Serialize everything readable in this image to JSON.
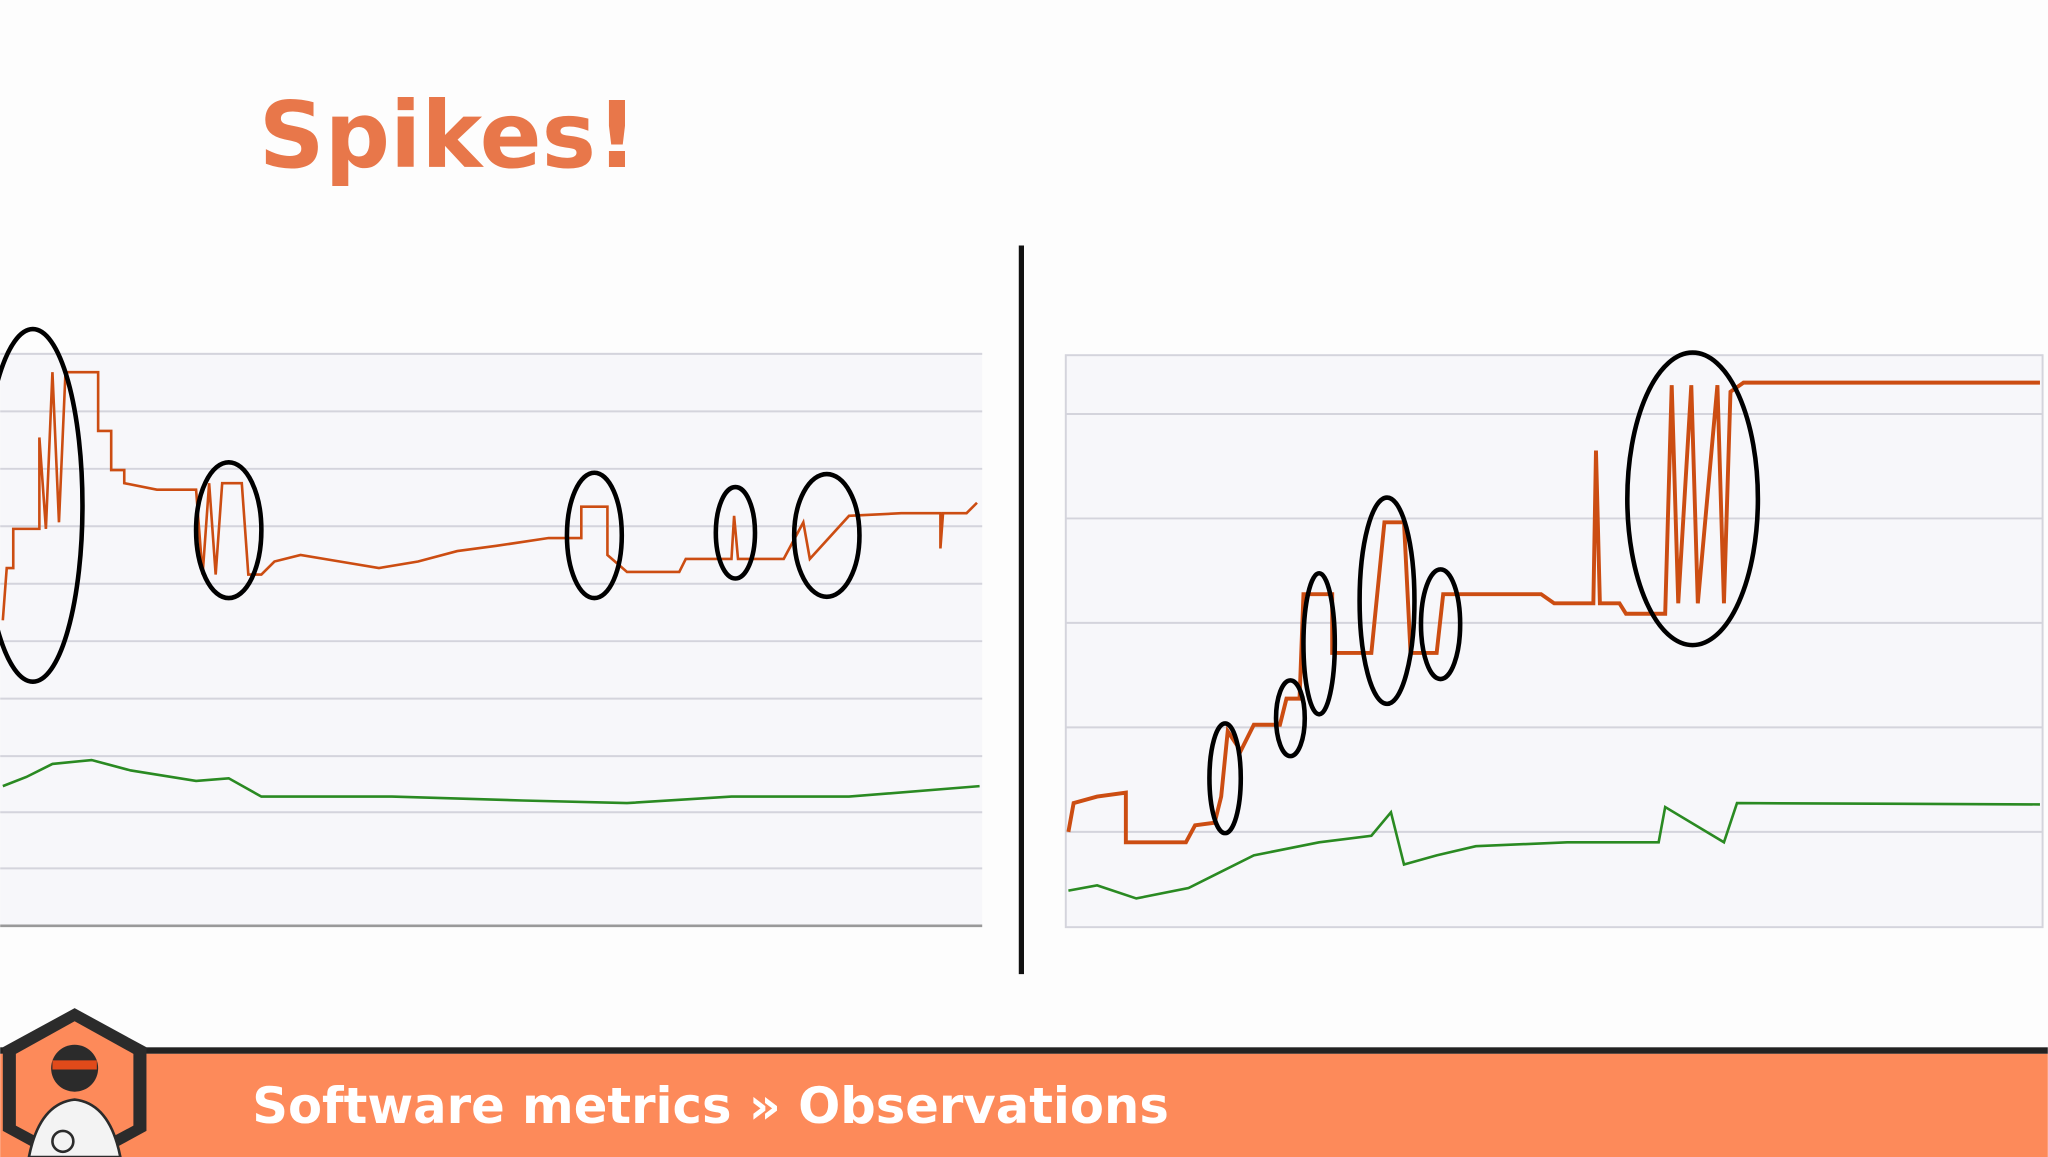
{
  "slide": {
    "title": "Spikes!"
  },
  "footer": {
    "breadcrumb": "Software metrics » Observations"
  }
}
